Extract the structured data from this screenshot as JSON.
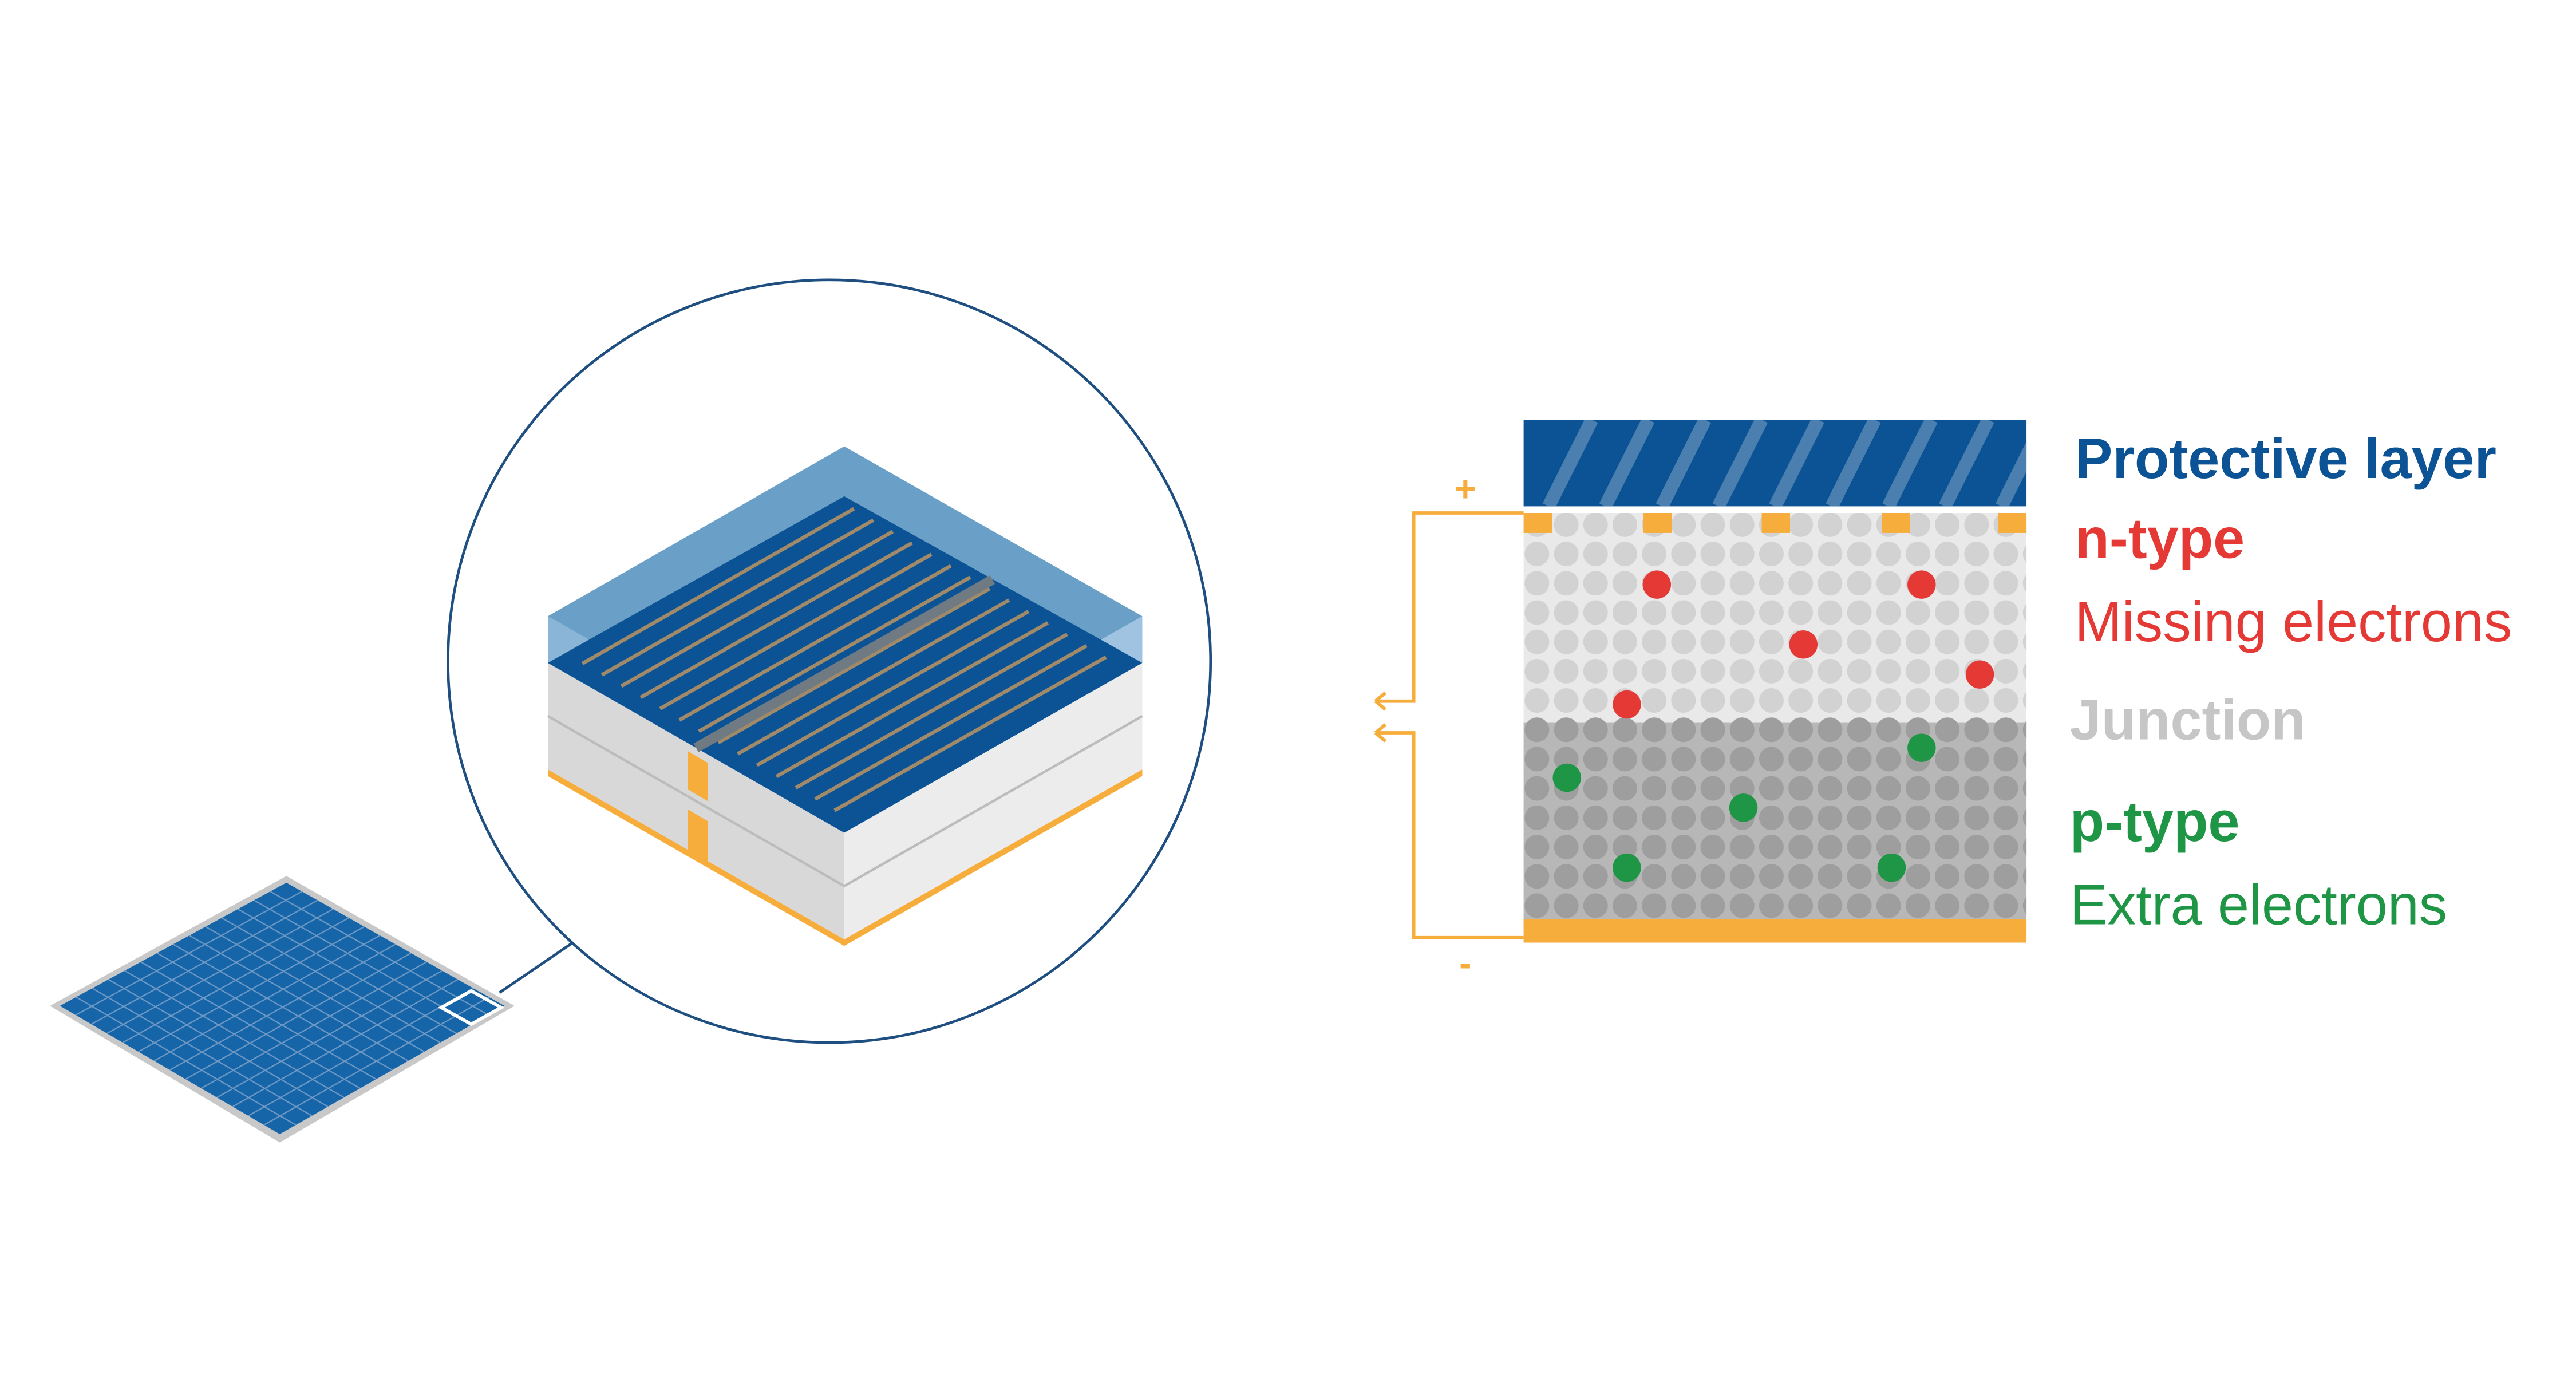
{
  "labels": {
    "protective_layer": "Protective layer",
    "n_type": "n-type",
    "missing_electrons": "Missing electrons",
    "junction": "Junction",
    "p_type": "p-type",
    "extra_electrons": "Extra electrons",
    "plus": "+",
    "minus": "-"
  },
  "colors": {
    "navy": "#0b5394",
    "blue": "#1565a8",
    "glass": "#6aa0c8",
    "red": "#e53935",
    "green": "#1e9645",
    "gray_text": "#c6c6c6",
    "orange": "#f6ad3c",
    "circle_outline": "#1e4f80"
  }
}
